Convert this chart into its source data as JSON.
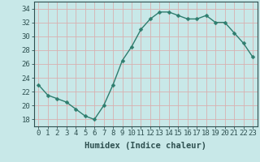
{
  "x": [
    0,
    1,
    2,
    3,
    4,
    5,
    6,
    7,
    8,
    9,
    10,
    11,
    12,
    13,
    14,
    15,
    16,
    17,
    18,
    19,
    20,
    21,
    22,
    23
  ],
  "y": [
    23,
    21.5,
    21,
    20.5,
    19.5,
    18.5,
    18,
    20,
    23,
    26.5,
    28.5,
    31,
    32.5,
    33.5,
    33.5,
    33,
    32.5,
    32.5,
    33,
    32,
    32,
    30.5,
    29,
    27
  ],
  "line_color": "#2e7d6e",
  "marker_color": "#2e7d6e",
  "bg_color": "#c8e8e8",
  "grid_color": "#b0d0d0",
  "xlabel": "Humidex (Indice chaleur)",
  "ylim": [
    17,
    35
  ],
  "xlim": [
    -0.5,
    23.5
  ],
  "yticks": [
    18,
    20,
    22,
    24,
    26,
    28,
    30,
    32,
    34
  ],
  "xticks": [
    0,
    1,
    2,
    3,
    4,
    5,
    6,
    7,
    8,
    9,
    10,
    11,
    12,
    13,
    14,
    15,
    16,
    17,
    18,
    19,
    20,
    21,
    22,
    23
  ],
  "xtick_labels": [
    "0",
    "1",
    "2",
    "3",
    "4",
    "5",
    "6",
    "7",
    "8",
    "9",
    "10",
    "11",
    "12",
    "13",
    "14",
    "15",
    "16",
    "17",
    "18",
    "19",
    "20",
    "21",
    "22",
    "23"
  ],
  "tick_fontsize": 6.5,
  "xlabel_fontsize": 7.5,
  "marker_size": 2.5,
  "line_width": 1.0
}
